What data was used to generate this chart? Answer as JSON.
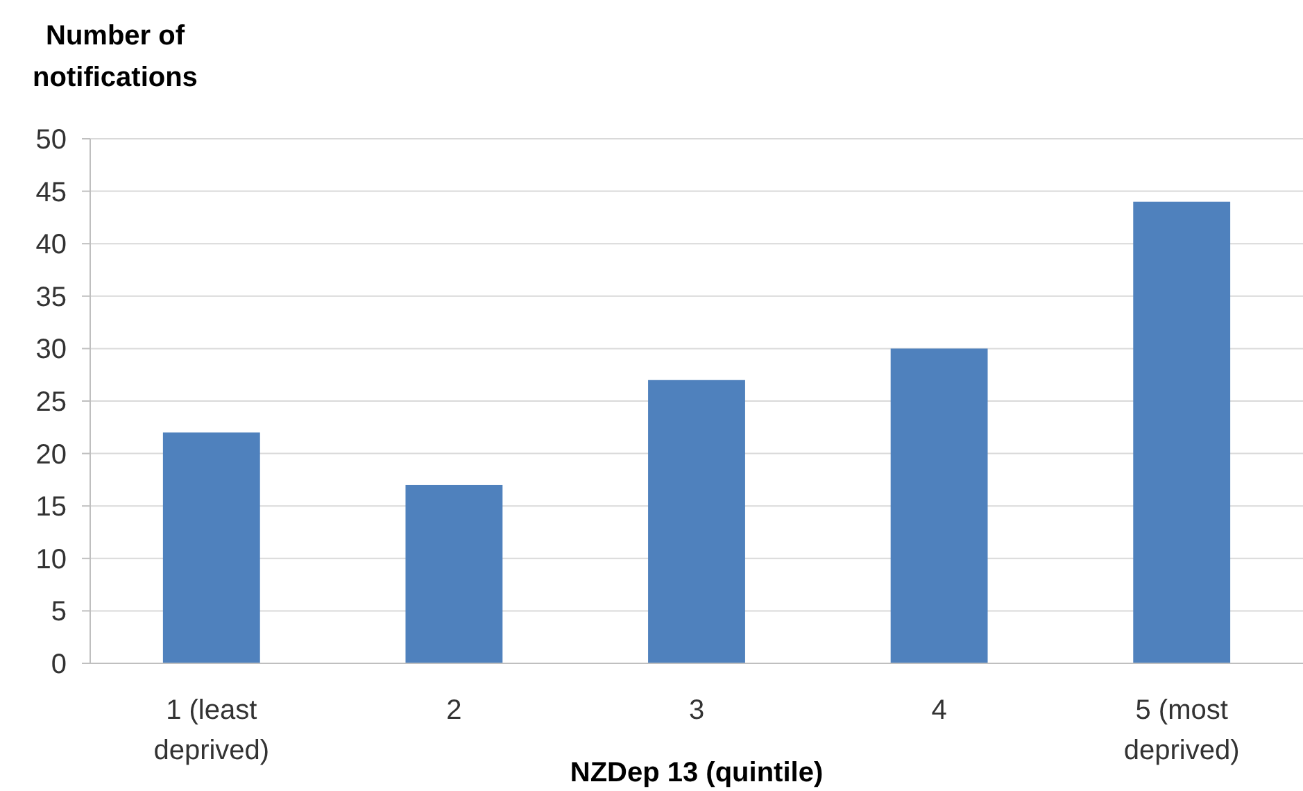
{
  "chart_data": {
    "type": "bar",
    "ylabel": "Number of notifications",
    "xlabel": "NZDep 13 (quintile)",
    "categories": [
      "1 (least deprived)",
      "2",
      "3",
      "4",
      "5 (most deprived)"
    ],
    "values": [
      22,
      17,
      27,
      30,
      44
    ],
    "color": "#4f81bd",
    "ylim": [
      0,
      50
    ],
    "yticks": [
      0,
      5,
      10,
      15,
      20,
      25,
      30,
      35,
      40,
      45,
      50
    ],
    "grid": "y"
  }
}
